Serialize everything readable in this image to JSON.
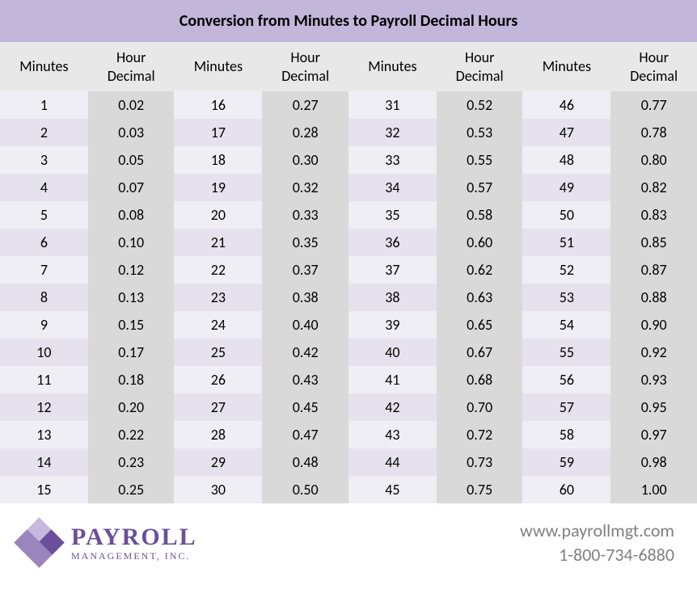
{
  "title": "Conversion from Minutes to Payroll Decimal Hours",
  "colors": {
    "title_bg": "#c2b6da",
    "header_bg": "#e8e8e8",
    "row_odd": "#eeeef4",
    "row_even": "#e5e2ee",
    "decimal_shade": "#d9d9d9",
    "logo_dark": "#6b4f9a",
    "logo_mid": "#9a85bf",
    "logo_light": "#c6b9dd",
    "footer_text": "#808080"
  },
  "fonts": {
    "title_size": 20,
    "header_size": 18,
    "cell_size": 18,
    "logo_main_size": 30,
    "logo_sub_size": 12,
    "contact_size": 22
  },
  "headers": {
    "minutes": "Minutes",
    "decimal_line1": "Hour",
    "decimal_line2": "Decimal"
  },
  "column_pairs": 4,
  "rows_per_column": 15,
  "data": [
    {
      "m": "1",
      "d": "0.02"
    },
    {
      "m": "2",
      "d": "0.03"
    },
    {
      "m": "3",
      "d": "0.05"
    },
    {
      "m": "4",
      "d": "0.07"
    },
    {
      "m": "5",
      "d": "0.08"
    },
    {
      "m": "6",
      "d": "0.10"
    },
    {
      "m": "7",
      "d": "0.12"
    },
    {
      "m": "8",
      "d": "0.13"
    },
    {
      "m": "9",
      "d": "0.15"
    },
    {
      "m": "10",
      "d": "0.17"
    },
    {
      "m": "11",
      "d": "0.18"
    },
    {
      "m": "12",
      "d": "0.20"
    },
    {
      "m": "13",
      "d": "0.22"
    },
    {
      "m": "14",
      "d": "0.23"
    },
    {
      "m": "15",
      "d": "0.25"
    },
    {
      "m": "16",
      "d": "0.27"
    },
    {
      "m": "17",
      "d": "0.28"
    },
    {
      "m": "18",
      "d": "0.30"
    },
    {
      "m": "19",
      "d": "0.32"
    },
    {
      "m": "20",
      "d": "0.33"
    },
    {
      "m": "21",
      "d": "0.35"
    },
    {
      "m": "22",
      "d": "0.37"
    },
    {
      "m": "23",
      "d": "0.38"
    },
    {
      "m": "24",
      "d": "0.40"
    },
    {
      "m": "25",
      "d": "0.42"
    },
    {
      "m": "26",
      "d": "0.43"
    },
    {
      "m": "27",
      "d": "0.45"
    },
    {
      "m": "28",
      "d": "0.47"
    },
    {
      "m": "29",
      "d": "0.48"
    },
    {
      "m": "30",
      "d": "0.50"
    },
    {
      "m": "31",
      "d": "0.52"
    },
    {
      "m": "32",
      "d": "0.53"
    },
    {
      "m": "33",
      "d": "0.55"
    },
    {
      "m": "34",
      "d": "0.57"
    },
    {
      "m": "35",
      "d": "0.58"
    },
    {
      "m": "36",
      "d": "0.60"
    },
    {
      "m": "37",
      "d": "0.62"
    },
    {
      "m": "38",
      "d": "0.63"
    },
    {
      "m": "39",
      "d": "0.65"
    },
    {
      "m": "40",
      "d": "0.67"
    },
    {
      "m": "41",
      "d": "0.68"
    },
    {
      "m": "42",
      "d": "0.70"
    },
    {
      "m": "43",
      "d": "0.72"
    },
    {
      "m": "44",
      "d": "0.73"
    },
    {
      "m": "45",
      "d": "0.75"
    },
    {
      "m": "46",
      "d": "0.77"
    },
    {
      "m": "47",
      "d": "0.78"
    },
    {
      "m": "48",
      "d": "0.80"
    },
    {
      "m": "49",
      "d": "0.82"
    },
    {
      "m": "50",
      "d": "0.83"
    },
    {
      "m": "51",
      "d": "0.85"
    },
    {
      "m": "52",
      "d": "0.87"
    },
    {
      "m": "53",
      "d": "0.88"
    },
    {
      "m": "54",
      "d": "0.90"
    },
    {
      "m": "55",
      "d": "0.92"
    },
    {
      "m": "56",
      "d": "0.93"
    },
    {
      "m": "57",
      "d": "0.95"
    },
    {
      "m": "58",
      "d": "0.97"
    },
    {
      "m": "59",
      "d": "0.98"
    },
    {
      "m": "60",
      "d": "1.00"
    }
  ],
  "logo": {
    "main": "PAYROLL",
    "sub": "MANAGEMENT, INC."
  },
  "contact": {
    "website": "www.payrollmgt.com",
    "phone": "1-800-734-6880"
  }
}
